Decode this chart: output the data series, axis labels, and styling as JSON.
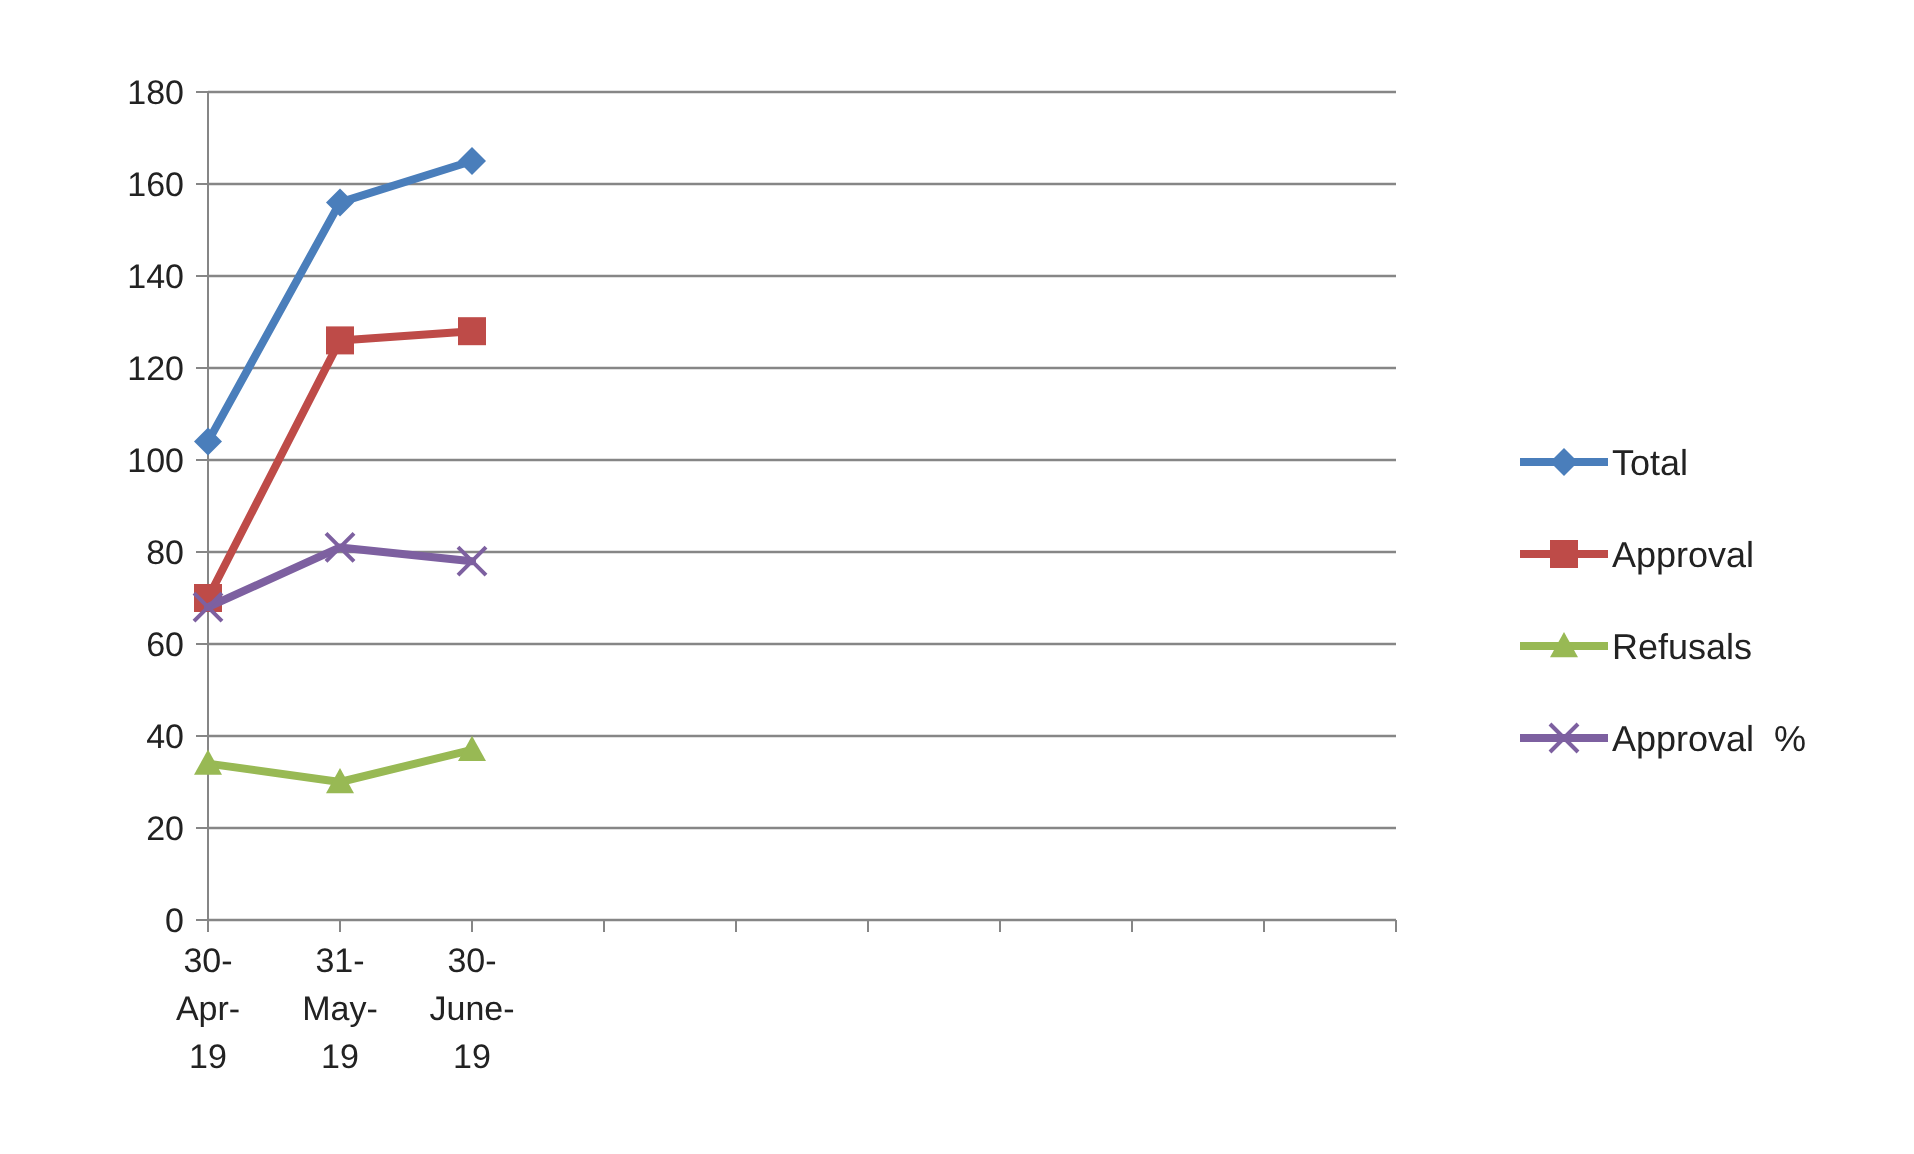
{
  "chart_data": {
    "type": "line",
    "categories": [
      "30-Apr-19",
      "31-May-19",
      "30-June-19",
      null,
      null,
      null,
      null,
      null,
      null,
      null
    ],
    "series": [
      {
        "name": "Total",
        "color": "#4a7ebb",
        "marker": "diamond",
        "values": [
          104,
          156,
          165,
          null,
          null,
          null,
          null,
          null,
          null,
          null
        ]
      },
      {
        "name": "Approval",
        "color": "#be4b48",
        "marker": "square",
        "values": [
          70,
          126,
          128,
          null,
          null,
          null,
          null,
          null,
          null,
          null
        ]
      },
      {
        "name": "Refusals",
        "color": "#98b954",
        "marker": "triangle",
        "values": [
          34,
          30,
          37,
          null,
          null,
          null,
          null,
          null,
          null,
          null
        ]
      },
      {
        "name": "Approval  %",
        "color": "#7d60a0",
        "marker": "cross",
        "values": [
          68,
          81,
          78,
          null,
          null,
          null,
          null,
          null,
          null,
          null
        ]
      }
    ],
    "ylim": [
      0,
      180
    ],
    "yticks": [
      0,
      20,
      40,
      60,
      80,
      100,
      120,
      140,
      160,
      180
    ],
    "grid": "y",
    "legend": "right"
  }
}
